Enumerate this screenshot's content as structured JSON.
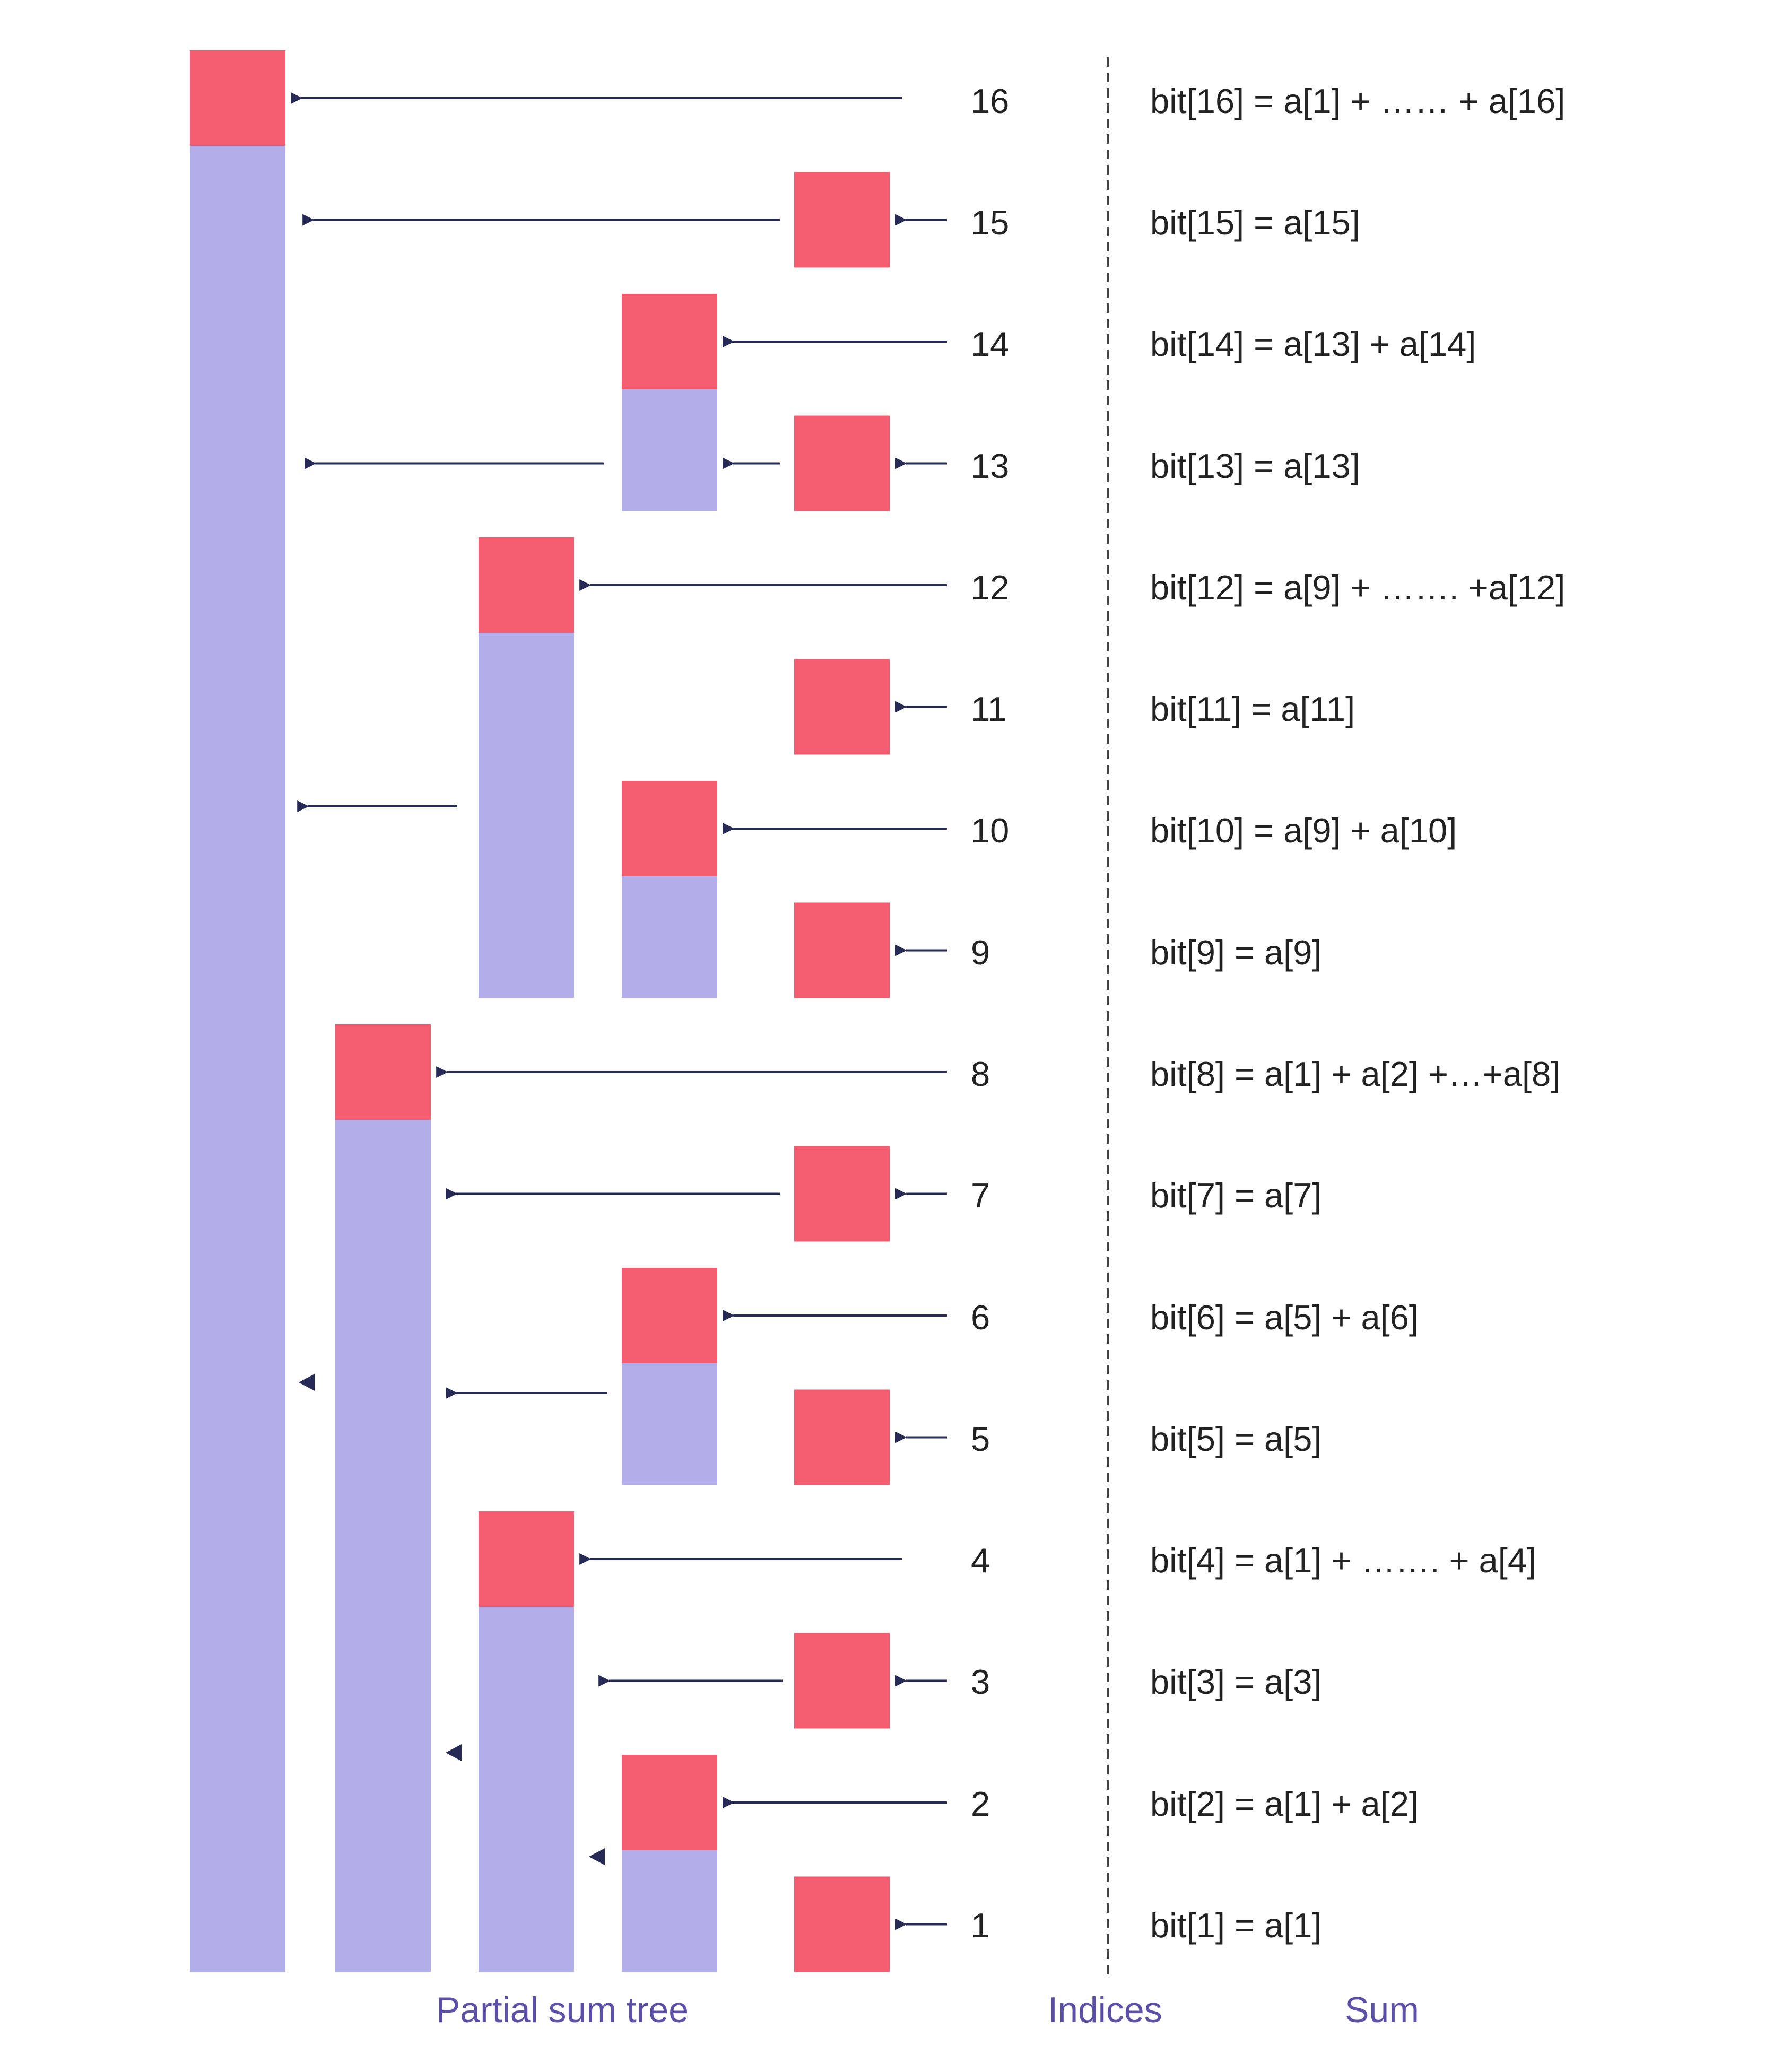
{
  "colors": {
    "red": "#f45c70",
    "purple": "#b2aeea",
    "arrow": "#262a55",
    "caption": "#5b4fa8",
    "divider": "#444444"
  },
  "captions": {
    "tree": "Partial sum tree",
    "indices": "Indices",
    "sum": "Sum"
  },
  "rows": [
    {
      "index": "16",
      "formula": "bit[16] = a[1] + …… + a[16]"
    },
    {
      "index": "15",
      "formula": "bit[15] = a[15]"
    },
    {
      "index": "14",
      "formula": "bit[14] = a[13] + a[14]"
    },
    {
      "index": "13",
      "formula": "bit[13] = a[13]"
    },
    {
      "index": "12",
      "formula": "bit[12] = a[9] + ……. +a[12]"
    },
    {
      "index": "11",
      "formula": "bit[11] = a[11]"
    },
    {
      "index": "10",
      "formula": "bit[10] = a[9] + a[10]"
    },
    {
      "index": "9",
      "formula": "bit[9] = a[9]"
    },
    {
      "index": "8",
      "formula": "bit[8] = a[1] + a[2] +…+a[8]"
    },
    {
      "index": "7",
      "formula": "bit[7] = a[7]"
    },
    {
      "index": "6",
      "formula": "bit[6] = a[5] + a[6]"
    },
    {
      "index": "5",
      "formula": "bit[5] = a[5]"
    },
    {
      "index": "4",
      "formula": "bit[4] = a[1] + ……. + a[4]"
    },
    {
      "index": "3",
      "formula": "bit[3] = a[3]"
    },
    {
      "index": "2",
      "formula": "bit[2] = a[1] + a[2]"
    },
    {
      "index": "1",
      "formula": "bit[1] = a[1]"
    }
  ]
}
